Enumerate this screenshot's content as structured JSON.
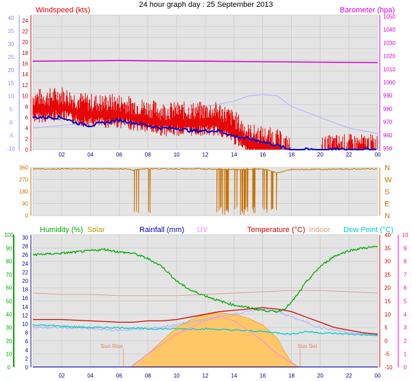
{
  "page_title": "24 hour graph day : 25 September 2013",
  "chart_data": [
    {
      "type": "line",
      "panel": "wind-barometer",
      "series_labels": {
        "windspeed": "Windspeed (kts)",
        "barometer": "Barometer (hpa)"
      },
      "colors": {
        "wind": "#e60000",
        "gust_avg": "#0000cc",
        "dewpoint_faint": "#aab0ff",
        "barometer": "#cc00cc",
        "axis_left_outer": "#8888ff",
        "axis_left_inner": "#cc0000",
        "axis_right": "#cc00cc",
        "plot_bg": "#e4e4e4"
      },
      "x_ticks": [
        "02",
        "04",
        "06",
        "08",
        "10",
        "12",
        "14",
        "16",
        "18",
        "20",
        "22",
        "00"
      ],
      "left_outer_ticks": [
        "40",
        "35",
        "30",
        "25",
        "20",
        "15",
        "10",
        "5",
        "0",
        "-5",
        "-10"
      ],
      "left_inner_ticks": [
        "24",
        "22",
        "20",
        "18",
        "16",
        "14",
        "12",
        "10",
        "8",
        "6",
        "4",
        "2",
        "0"
      ],
      "right_ticks": [
        "1050",
        "1040",
        "1030",
        "1020",
        "1010",
        "1000",
        "990",
        "980",
        "970",
        "960",
        "950"
      ],
      "ylim_wind": [
        0,
        25
      ],
      "ylim_baro": [
        949,
        1051
      ],
      "barometer": {
        "x": [
          0,
          6,
          12,
          18,
          24
        ],
        "y": [
          1016,
          1016.5,
          1016,
          1015.5,
          1015
        ]
      },
      "wind_avg": {
        "x": [
          0,
          1,
          2,
          3,
          4,
          5,
          6,
          7,
          8,
          9,
          10,
          11,
          12,
          13,
          14,
          15,
          16,
          17,
          17.5,
          18,
          19,
          20,
          21,
          22,
          23,
          24
        ],
        "y": [
          6,
          6,
          6,
          5,
          4.5,
          5,
          5.5,
          5,
          4.5,
          4,
          4,
          3.5,
          3.5,
          3.5,
          2.5,
          2,
          1.5,
          0.8,
          0.3,
          0,
          0,
          0,
          0,
          0,
          0,
          0
        ]
      },
      "wind_gust": {
        "x": [
          0,
          1,
          2,
          3,
          4,
          5,
          6,
          7,
          8,
          9,
          10,
          11,
          12,
          13,
          14,
          15,
          16,
          17,
          17.5,
          18,
          19,
          20,
          21,
          22,
          23,
          24
        ],
        "y": [
          9,
          9,
          9.5,
          8.5,
          8,
          8,
          8,
          7.5,
          7,
          6.5,
          6.5,
          6.5,
          6.5,
          6.5,
          5,
          2.5,
          2,
          1.5,
          0.5,
          0,
          0,
          0,
          0.5,
          0.5,
          0.5,
          0.5
        ]
      },
      "temp_faint": {
        "x": [
          0,
          2,
          4,
          6,
          8,
          10,
          12,
          14,
          15,
          16,
          17,
          18,
          20,
          22,
          24
        ],
        "y": [
          1,
          1.5,
          2,
          2.5,
          3,
          4,
          5,
          6,
          7,
          7.2,
          7,
          5,
          3,
          1,
          0
        ]
      }
    },
    {
      "type": "line",
      "panel": "wind-direction",
      "color": "#c87000",
      "left_ticks": [
        "360",
        "270",
        "180",
        "90",
        "0"
      ],
      "right_ticks": [
        "N",
        "W",
        "S",
        "E",
        "N"
      ],
      "ylim": [
        0,
        360
      ],
      "direction": {
        "x": [
          0,
          6.5,
          7,
          7.5,
          8,
          10,
          12,
          14,
          16,
          17,
          18,
          24
        ],
        "y": [
          350,
          350,
          340,
          345,
          350,
          350,
          350,
          345,
          350,
          320,
          345,
          350
        ]
      }
    },
    {
      "type": "line",
      "panel": "humidity-solar-rain-uv-temp",
      "series_labels": {
        "humidity": "Humidity (%)",
        "solar": "Solar",
        "rainfall": "Rainfall (mm)",
        "uv": "UV",
        "temperature": "Temperature (°C)",
        "indoor": "Indoor",
        "dewpoint": "Dew Point (°C)"
      },
      "annotations": [
        "Sun Rise",
        "Sun Set"
      ],
      "colors": {
        "humidity": "#00aa00",
        "solar": "#b8a000",
        "solar_fill": "#ffc766",
        "rainfall": "#0000aa",
        "uv": "#ff80ff",
        "temperature": "#cc0000",
        "indoor": "#e0a080",
        "dewpoint": "#00cccc",
        "faint": "#aab0ff",
        "axis_right": "#ff00aa",
        "plot_bg": "#e4e4e4"
      },
      "x_ticks": [
        "02",
        "04",
        "06",
        "08",
        "10",
        "12",
        "14",
        "16",
        "18",
        "20",
        "22",
        "00"
      ],
      "humidity_ticks": [
        "100",
        "90",
        "80",
        "70",
        "60",
        "50",
        "40",
        "30",
        "20",
        "10",
        "0"
      ],
      "rain_ticks": [
        "30",
        "28",
        "26",
        "24",
        "22",
        "20",
        "18",
        "16",
        "14",
        "12",
        "10",
        "8",
        "6",
        "4",
        "2",
        "0"
      ],
      "temp_ticks": [
        "40",
        "35",
        "30",
        "25",
        "20",
        "15",
        "10",
        "5",
        "0",
        "-5",
        "-10"
      ],
      "uv_ticks": [
        "10",
        "9",
        "8",
        "7",
        "6",
        "5",
        "4",
        "3",
        "2",
        "1",
        "0"
      ],
      "humidity": {
        "x": [
          0,
          2,
          4,
          5,
          6,
          7,
          8,
          9,
          10,
          11,
          12,
          13,
          14,
          15,
          16,
          17,
          17.5,
          18,
          18.5,
          19,
          20,
          21,
          22,
          23,
          24
        ],
        "y": [
          85,
          86,
          88,
          89,
          87,
          86,
          82,
          76,
          65,
          58,
          54,
          50,
          47,
          45,
          43,
          42,
          44,
          49,
          56,
          64,
          76,
          84,
          88,
          90,
          91
        ]
      },
      "temperature": {
        "x": [
          0,
          2,
          4,
          6,
          7,
          8,
          9,
          10,
          11,
          12,
          13,
          14,
          15,
          16,
          17,
          18,
          19,
          20,
          21,
          22,
          23,
          24
        ],
        "y": [
          8,
          8,
          7.5,
          7,
          7,
          7.5,
          7.5,
          8,
          9,
          10,
          11,
          11.5,
          12,
          12.5,
          12,
          11,
          9,
          7,
          5,
          4,
          3,
          2.5
        ]
      },
      "indoor": {
        "x": [
          0,
          2,
          4,
          6,
          8,
          10,
          12,
          14,
          16,
          18,
          20,
          22,
          24
        ],
        "y": [
          18,
          17.5,
          17.5,
          17,
          17,
          17,
          17.5,
          18,
          18.5,
          19,
          19,
          18.5,
          18
        ]
      },
      "dewpoint": {
        "x": [
          0,
          2,
          4,
          6,
          8,
          10,
          12,
          14,
          16,
          17,
          18,
          19,
          20,
          22,
          24
        ],
        "y": [
          6,
          5.5,
          5,
          5,
          4.5,
          4.5,
          4.5,
          4,
          3.5,
          3,
          2.5,
          3.5,
          3,
          2.5,
          2
        ]
      },
      "faint": {
        "x": [
          0,
          2,
          4,
          6,
          8,
          10,
          11,
          12,
          13,
          14,
          15,
          16,
          17,
          18,
          19,
          20,
          22,
          24
        ],
        "y": [
          5,
          5,
          4.5,
          4,
          4.5,
          6,
          7,
          8,
          9,
          10,
          11,
          12,
          11,
          9,
          7,
          5,
          3,
          2
        ]
      },
      "solar": {
        "x": [
          6.8,
          7,
          8,
          9,
          10,
          11,
          12,
          13,
          14,
          15,
          16,
          17,
          17.5,
          18,
          18.5
        ],
        "y": [
          0,
          2,
          10,
          20,
          30,
          36,
          40,
          41,
          40,
          37,
          32,
          22,
          12,
          4,
          0
        ]
      },
      "uv": {
        "x": [
          6.8,
          8,
          10,
          12,
          13,
          14,
          16,
          17,
          18.5
        ],
        "y": [
          0,
          1,
          2.5,
          3.5,
          3.9,
          3.5,
          2,
          1,
          0
        ]
      },
      "rainfall": {
        "x": [
          0,
          24
        ],
        "y": [
          0,
          0
        ]
      },
      "sunrise_hour": 7.0,
      "sunset_hour": 18.6
    }
  ]
}
